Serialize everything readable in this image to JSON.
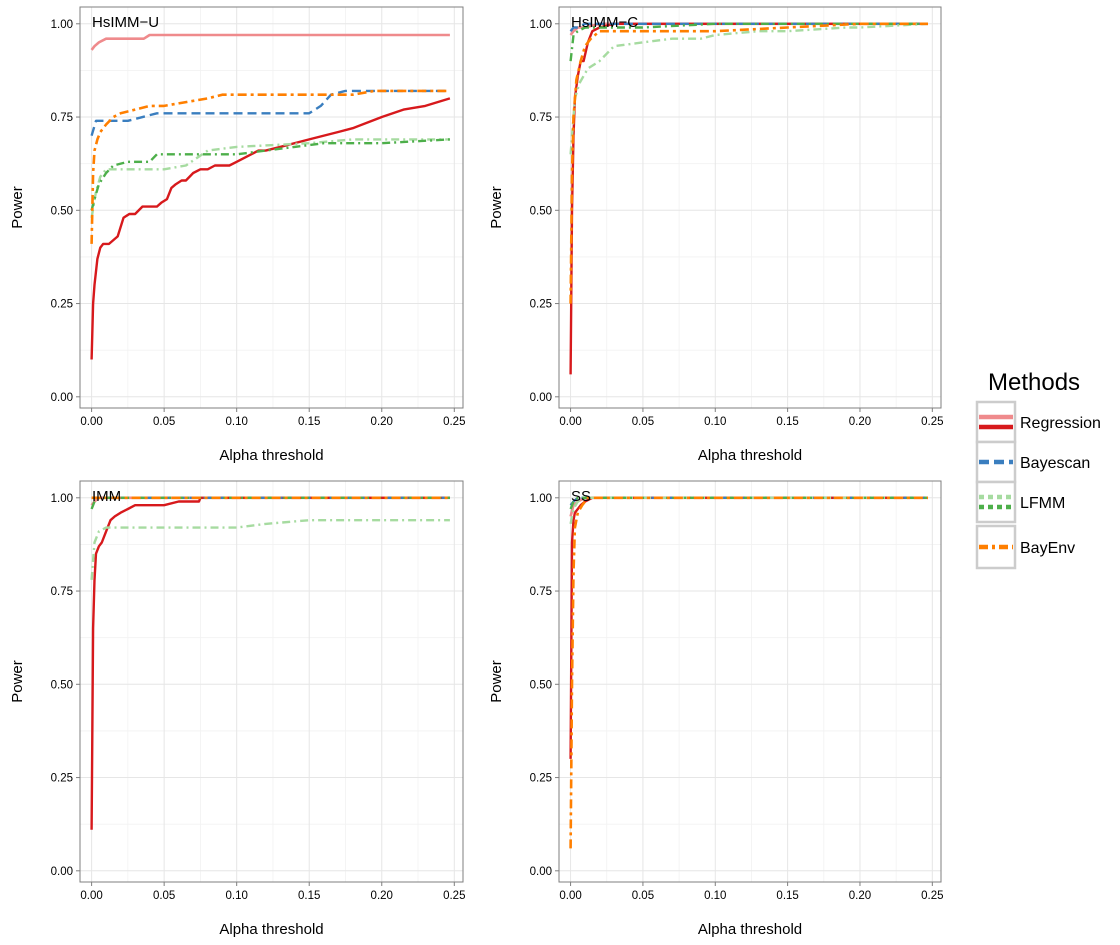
{
  "legend": {
    "title": "Methods",
    "position": "right",
    "entries": [
      "Regression",
      "Bayescan",
      "LFMM",
      "BayEnv"
    ]
  },
  "styles": {
    "regression_light": "#ef8a8c",
    "regression_dark": "#d7191c",
    "bayescan": "#3a7ebf",
    "lfmm_light": "#a6dba0",
    "lfmm_dark": "#4daf4a",
    "bayenv": "#ff7f00",
    "grid_major": "#e6e6e6",
    "grid_minor": "#f2f2f2",
    "panel_border": "#7f7f7f",
    "text": "#000000"
  },
  "shared_axes": {
    "xlabel": "Alpha threshold",
    "ylabel": "Power",
    "x_ticks": [
      "0.00",
      "0.05",
      "0.10",
      "0.15",
      "0.20",
      "0.25"
    ],
    "y_ticks": [
      "0.00",
      "0.25",
      "0.50",
      "0.75",
      "1.00"
    ],
    "xlim": [
      -0.008,
      0.256
    ],
    "ylim": [
      -0.03,
      1.045
    ],
    "grid": true
  },
  "chart_data": [
    {
      "type": "line",
      "title": "HsIMM−U",
      "xlabel": "Alpha threshold",
      "ylabel": "Power",
      "series": [
        {
          "name": "Regression",
          "style": "regression_light",
          "x": [
            0,
            0.002,
            0.005,
            0.01,
            0.02,
            0.03,
            0.036,
            0.04,
            0.1,
            0.2,
            0.247
          ],
          "y": [
            0.93,
            0.94,
            0.95,
            0.96,
            0.96,
            0.96,
            0.96,
            0.97,
            0.97,
            0.97,
            0.97
          ]
        },
        {
          "name": "Regression",
          "style": "regression_dark",
          "x": [
            0,
            0.001,
            0.002,
            0.004,
            0.006,
            0.008,
            0.012,
            0.018,
            0.022,
            0.026,
            0.03,
            0.035,
            0.04,
            0.045,
            0.048,
            0.052,
            0.055,
            0.058,
            0.062,
            0.065,
            0.07,
            0.075,
            0.08,
            0.085,
            0.09,
            0.095,
            0.1,
            0.11,
            0.115,
            0.12,
            0.13,
            0.15,
            0.17,
            0.18,
            0.2,
            0.215,
            0.23,
            0.247
          ],
          "y": [
            0.1,
            0.25,
            0.3,
            0.37,
            0.4,
            0.41,
            0.41,
            0.43,
            0.48,
            0.49,
            0.49,
            0.51,
            0.51,
            0.51,
            0.52,
            0.53,
            0.56,
            0.57,
            0.58,
            0.58,
            0.6,
            0.61,
            0.61,
            0.62,
            0.62,
            0.62,
            0.63,
            0.65,
            0.66,
            0.66,
            0.67,
            0.69,
            0.71,
            0.72,
            0.75,
            0.77,
            0.78,
            0.8
          ]
        },
        {
          "name": "Bayescan",
          "style": "bayescan",
          "x": [
            0,
            0.003,
            0.006,
            0.025,
            0.045,
            0.06,
            0.1,
            0.15,
            0.158,
            0.165,
            0.175,
            0.2,
            0.247
          ],
          "y": [
            0.7,
            0.74,
            0.74,
            0.74,
            0.76,
            0.76,
            0.76,
            0.76,
            0.78,
            0.81,
            0.82,
            0.82,
            0.82
          ]
        },
        {
          "name": "LFMM",
          "style": "lfmm_light",
          "x": [
            0,
            0.003,
            0.006,
            0.01,
            0.02,
            0.035,
            0.05,
            0.065,
            0.08,
            0.1,
            0.15,
            0.18,
            0.2,
            0.247
          ],
          "y": [
            0.48,
            0.55,
            0.59,
            0.61,
            0.61,
            0.61,
            0.61,
            0.62,
            0.66,
            0.67,
            0.68,
            0.69,
            0.69,
            0.69
          ]
        },
        {
          "name": "LFMM",
          "style": "lfmm_dark",
          "x": [
            0,
            0.002,
            0.005,
            0.01,
            0.015,
            0.025,
            0.04,
            0.045,
            0.06,
            0.08,
            0.1,
            0.12,
            0.14,
            0.16,
            0.2,
            0.247
          ],
          "y": [
            0.5,
            0.53,
            0.57,
            0.6,
            0.62,
            0.63,
            0.63,
            0.65,
            0.65,
            0.65,
            0.65,
            0.66,
            0.67,
            0.68,
            0.68,
            0.69
          ]
        },
        {
          "name": "BayEnv",
          "style": "bayenv",
          "x": [
            0,
            0.001,
            0.002,
            0.004,
            0.006,
            0.01,
            0.015,
            0.02,
            0.03,
            0.04,
            0.05,
            0.065,
            0.08,
            0.09,
            0.1,
            0.15,
            0.18,
            0.195,
            0.2,
            0.247
          ],
          "y": [
            0.41,
            0.6,
            0.66,
            0.69,
            0.71,
            0.73,
            0.75,
            0.76,
            0.77,
            0.78,
            0.78,
            0.79,
            0.8,
            0.81,
            0.81,
            0.81,
            0.81,
            0.82,
            0.82,
            0.82
          ]
        }
      ]
    },
    {
      "type": "line",
      "title": "HsIMM−C",
      "xlabel": "Alpha threshold",
      "ylabel": "Power",
      "series": [
        {
          "name": "Regression",
          "style": "regression_light",
          "x": [
            0,
            0.002,
            0.005,
            0.01,
            0.02,
            0.1,
            0.15,
            0.247
          ],
          "y": [
            0.97,
            0.98,
            0.99,
            0.99,
            1.0,
            1.0,
            1.0,
            1.0
          ]
        },
        {
          "name": "Regression",
          "style": "regression_dark",
          "x": [
            0,
            0.001,
            0.002,
            0.003,
            0.005,
            0.007,
            0.009,
            0.012,
            0.015,
            0.02,
            0.03,
            0.06,
            0.1,
            0.247
          ],
          "y": [
            0.06,
            0.5,
            0.7,
            0.8,
            0.86,
            0.9,
            0.9,
            0.95,
            0.98,
            0.99,
            1.0,
            1.0,
            1.0,
            1.0
          ]
        },
        {
          "name": "Bayescan",
          "style": "bayescan",
          "x": [
            0,
            0.002,
            0.005,
            0.01,
            0.05,
            0.1,
            0.2,
            0.247
          ],
          "y": [
            0.98,
            0.99,
            0.99,
            1.0,
            1.0,
            1.0,
            1.0,
            1.0
          ]
        },
        {
          "name": "LFMM",
          "style": "lfmm_light",
          "x": [
            0,
            0.003,
            0.006,
            0.012,
            0.02,
            0.03,
            0.05,
            0.07,
            0.09,
            0.1,
            0.13,
            0.15,
            0.19,
            0.2,
            0.247
          ],
          "y": [
            0.65,
            0.8,
            0.84,
            0.88,
            0.9,
            0.94,
            0.95,
            0.96,
            0.96,
            0.97,
            0.98,
            0.98,
            0.99,
            0.99,
            1.0
          ]
        },
        {
          "name": "LFMM",
          "style": "lfmm_dark",
          "x": [
            0,
            0.002,
            0.005,
            0.01,
            0.02,
            0.05,
            0.1,
            0.15,
            0.247
          ],
          "y": [
            0.9,
            0.97,
            0.98,
            0.99,
            0.99,
            0.99,
            1.0,
            1.0,
            1.0
          ]
        },
        {
          "name": "BayEnv",
          "style": "bayenv",
          "x": [
            0,
            0.001,
            0.002,
            0.004,
            0.007,
            0.01,
            0.014,
            0.02,
            0.05,
            0.1,
            0.15,
            0.2,
            0.247
          ],
          "y": [
            0.25,
            0.6,
            0.75,
            0.85,
            0.9,
            0.94,
            0.96,
            0.98,
            0.98,
            0.98,
            0.99,
            1.0,
            1.0
          ]
        }
      ]
    },
    {
      "type": "line",
      "title": "IMM",
      "xlabel": "Alpha threshold",
      "ylabel": "Power",
      "series": [
        {
          "name": "Regression",
          "style": "regression_light",
          "x": [
            0,
            0.002,
            0.005,
            0.1,
            0.247
          ],
          "y": [
            0.98,
            0.99,
            1.0,
            1.0,
            1.0
          ]
        },
        {
          "name": "Regression",
          "style": "regression_dark",
          "x": [
            0,
            0.001,
            0.002,
            0.003,
            0.005,
            0.007,
            0.01,
            0.013,
            0.016,
            0.02,
            0.025,
            0.03,
            0.04,
            0.05,
            0.06,
            0.074,
            0.075,
            0.1,
            0.247
          ],
          "y": [
            0.11,
            0.65,
            0.78,
            0.85,
            0.87,
            0.88,
            0.91,
            0.94,
            0.95,
            0.96,
            0.97,
            0.98,
            0.98,
            0.98,
            0.99,
            0.99,
            1.0,
            1.0,
            1.0
          ]
        },
        {
          "name": "Bayescan",
          "style": "bayescan",
          "x": [
            0,
            0.247
          ],
          "y": [
            1.0,
            1.0
          ]
        },
        {
          "name": "LFMM",
          "style": "lfmm_light",
          "x": [
            0,
            0.002,
            0.005,
            0.01,
            0.05,
            0.1,
            0.12,
            0.15,
            0.2,
            0.247
          ],
          "y": [
            0.78,
            0.88,
            0.91,
            0.92,
            0.92,
            0.92,
            0.93,
            0.94,
            0.94,
            0.94
          ]
        },
        {
          "name": "LFMM",
          "style": "lfmm_dark",
          "x": [
            0,
            0.002,
            0.005,
            0.1,
            0.247
          ],
          "y": [
            0.97,
            0.99,
            1.0,
            1.0,
            1.0
          ]
        },
        {
          "name": "BayEnv",
          "style": "bayenv",
          "x": [
            0,
            0.247
          ],
          "y": [
            1.0,
            1.0
          ]
        }
      ]
    },
    {
      "type": "line",
      "title": "SS",
      "xlabel": "Alpha threshold",
      "ylabel": "Power",
      "series": [
        {
          "name": "Regression",
          "style": "regression_light",
          "x": [
            0,
            0.002,
            0.005,
            0.01,
            0.1,
            0.247
          ],
          "y": [
            0.95,
            0.98,
            0.99,
            1.0,
            1.0,
            1.0
          ]
        },
        {
          "name": "Regression",
          "style": "regression_dark",
          "x": [
            0,
            0.001,
            0.002,
            0.003,
            0.005,
            0.007,
            0.01,
            0.015,
            0.1,
            0.247
          ],
          "y": [
            0.3,
            0.88,
            0.94,
            0.96,
            0.97,
            0.98,
            0.99,
            1.0,
            1.0,
            1.0
          ]
        },
        {
          "name": "Bayescan",
          "style": "bayescan",
          "x": [
            0,
            0.002,
            0.005,
            0.247
          ],
          "y": [
            0.98,
            0.99,
            1.0,
            1.0
          ]
        },
        {
          "name": "LFMM",
          "style": "lfmm_light",
          "x": [
            0,
            0.002,
            0.005,
            0.01,
            0.1,
            0.247
          ],
          "y": [
            0.93,
            0.97,
            0.99,
            1.0,
            1.0,
            1.0
          ]
        },
        {
          "name": "LFMM",
          "style": "lfmm_dark",
          "x": [
            0,
            0.002,
            0.005,
            0.1,
            0.247
          ],
          "y": [
            0.97,
            0.99,
            1.0,
            1.0,
            1.0
          ]
        },
        {
          "name": "BayEnv",
          "style": "bayenv",
          "x": [
            0,
            0.001,
            0.002,
            0.003,
            0.005,
            0.008,
            0.012,
            0.1,
            0.247
          ],
          "y": [
            0.06,
            0.5,
            0.8,
            0.92,
            0.96,
            0.98,
            1.0,
            1.0,
            1.0
          ]
        }
      ]
    }
  ]
}
